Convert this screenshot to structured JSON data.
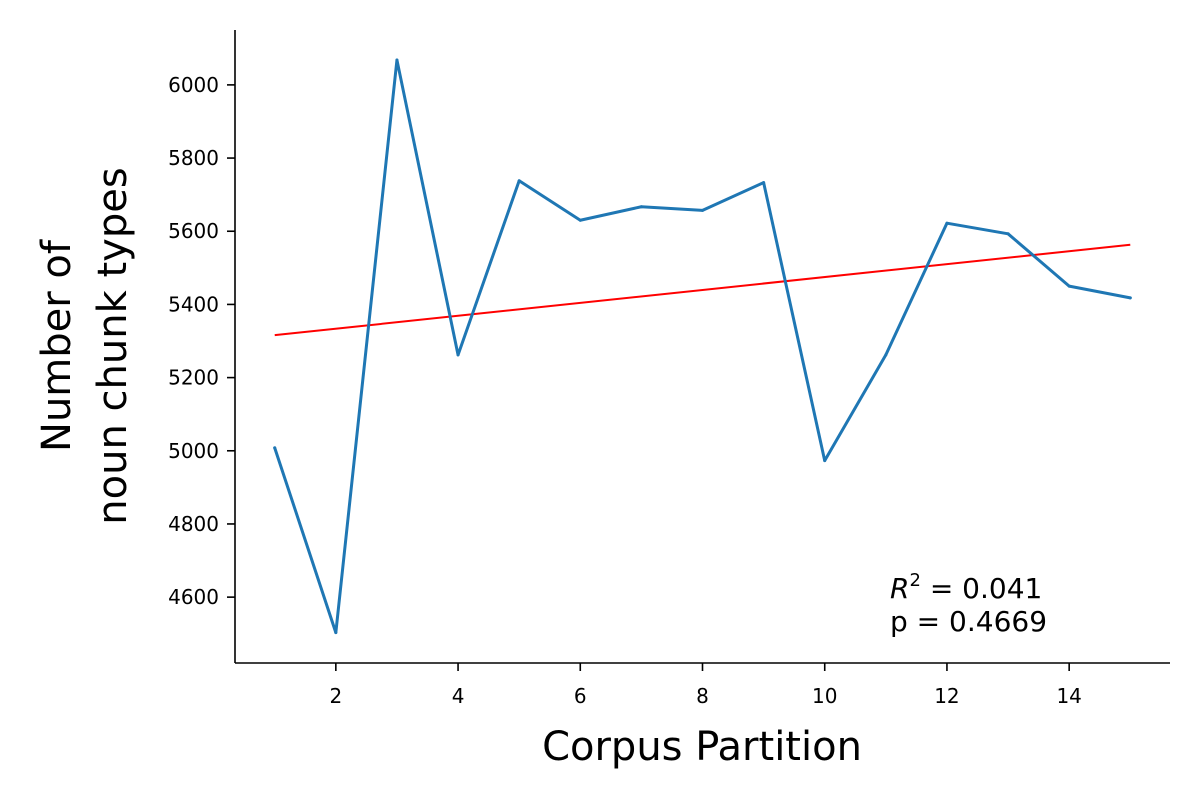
{
  "chart_data": {
    "type": "line",
    "title": "",
    "xlabel": "Corpus Partition",
    "ylabel_lines": [
      "Number of",
      "noun chunk types"
    ],
    "xlim": [
      0.35,
      15.65
    ],
    "ylim": [
      4420,
      6150
    ],
    "xticks": [
      2,
      4,
      6,
      8,
      10,
      12,
      14
    ],
    "yticks": [
      4600,
      4800,
      5000,
      5200,
      5400,
      5600,
      5800,
      6000
    ],
    "grid": false,
    "series": [
      {
        "color": "#1f77b4",
        "x": [
          1,
          2,
          3,
          4,
          5,
          6,
          7,
          8,
          9,
          10,
          11,
          12,
          13,
          14,
          15
        ],
        "y": [
          5008,
          4503,
          6068,
          5262,
          5738,
          5630,
          5667,
          5657,
          5733,
          4973,
          5262,
          5622,
          5593,
          5450,
          5418
        ]
      }
    ],
    "trendline": {
      "color": "#ff0000",
      "x": [
        1,
        15
      ],
      "y": [
        5316,
        5563
      ]
    },
    "annotation": {
      "r2_label": "R",
      "r2_sup": "2",
      "r2_value": " = 0.041",
      "p_text": "p = 0.4669"
    }
  }
}
